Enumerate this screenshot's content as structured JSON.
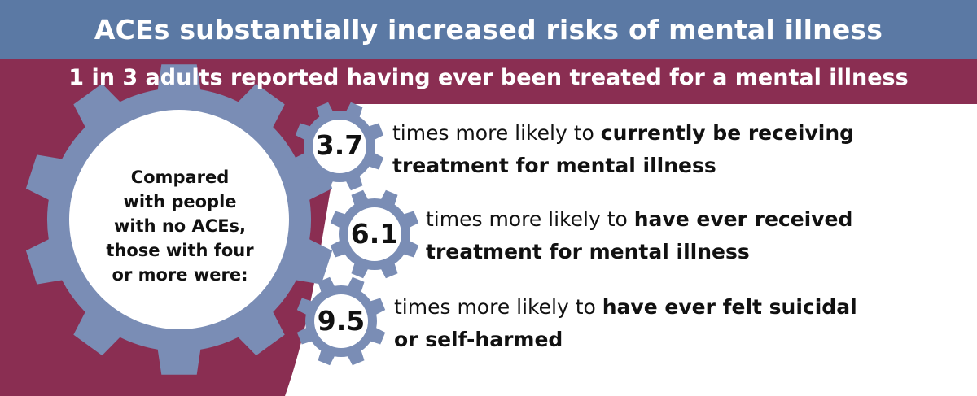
{
  "title": "ACEs substantially increased risks of mental illness",
  "subtitle": "1 in 3 adults reported having ever been treated for a mental illness",
  "intro_lines": [
    "Compared",
    "with people",
    "with no ACEs,",
    "those with four",
    "or more were:"
  ],
  "stats": [
    {
      "value": "3.7",
      "prefix": "times more likely to ",
      "emphasis_line1": "currently be receiving",
      "line2": "treatment for mental illness"
    },
    {
      "value": "6.1",
      "prefix": "times more likely to ",
      "emphasis_line1": "have ever received",
      "line2": "treatment for mental illness"
    },
    {
      "value": "9.5",
      "prefix": "times more likely to ",
      "emphasis_line1": "have ever felt suicidal",
      "line2": "or self-harmed"
    }
  ],
  "colors": {
    "title_bar": "#5b79a4",
    "maroon": "#8a2e52",
    "gear": "#7a8db5",
    "text": "#111111",
    "white": "#ffffff"
  },
  "icons": {
    "gear_large": "gear-icon",
    "gear_small": "gear-icon"
  }
}
